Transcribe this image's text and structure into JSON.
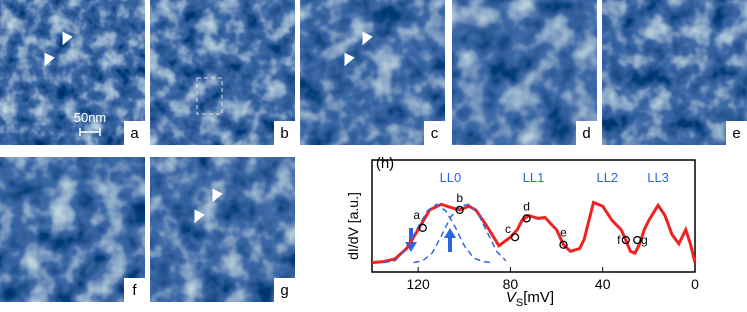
{
  "panels": [
    {
      "label": "a",
      "scale": "50nm"
    },
    {
      "label": "b"
    },
    {
      "label": "c"
    },
    {
      "label": "d"
    },
    {
      "label": "e"
    },
    {
      "label": "f"
    },
    {
      "label": "g"
    }
  ],
  "chart_data": {
    "type": "line",
    "panel_label": "(h)",
    "y_label": "dI/dV [a.u.]",
    "x_label": {
      "symbol": "V",
      "subscript": "S",
      "unit": "[mV]"
    },
    "xlim": [
      140,
      0
    ],
    "xticks": [
      120,
      80,
      40,
      0
    ],
    "ylim": [
      0,
      1
    ],
    "annotations": [
      {
        "text": "LL0",
        "x": 106
      },
      {
        "text": "LL1",
        "x": 70
      },
      {
        "text": "LL2",
        "x": 38
      },
      {
        "text": "LL3",
        "x": 16
      }
    ],
    "series": [
      {
        "style": "solid",
        "color": "#ee2222",
        "x": [
          140,
          135,
          130,
          125,
          120,
          115,
          110,
          105,
          102,
          98,
          95,
          90,
          85,
          80,
          77,
          75,
          72,
          68,
          65,
          62,
          60,
          57,
          54,
          50,
          48,
          44,
          40,
          36,
          32,
          30,
          28,
          26,
          24,
          22,
          20,
          18,
          16,
          13,
          10,
          7,
          4,
          2,
          0
        ],
        "values": [
          0.1,
          0.11,
          0.14,
          0.25,
          0.45,
          0.66,
          0.72,
          0.68,
          0.66,
          0.7,
          0.66,
          0.48,
          0.28,
          0.37,
          0.45,
          0.55,
          0.6,
          0.57,
          0.58,
          0.5,
          0.45,
          0.29,
          0.22,
          0.25,
          0.35,
          0.74,
          0.7,
          0.55,
          0.45,
          0.34,
          0.22,
          0.2,
          0.3,
          0.45,
          0.55,
          0.63,
          0.71,
          0.6,
          0.4,
          0.3,
          0.45,
          0.3,
          0.1
        ]
      },
      {
        "style": "dashed",
        "color": "#3366dd",
        "x": [
          135,
          130,
          125,
          120,
          116,
          112,
          108,
          104,
          100,
          96,
          92,
          88
        ],
        "values": [
          0.1,
          0.12,
          0.25,
          0.48,
          0.65,
          0.72,
          0.65,
          0.48,
          0.28,
          0.15,
          0.11,
          0.1
        ]
      },
      {
        "style": "dashed",
        "color": "#3366dd",
        "x": [
          122,
          118,
          114,
          110,
          106,
          102,
          98,
          94,
          90,
          86,
          82
        ],
        "values": [
          0.1,
          0.12,
          0.2,
          0.38,
          0.58,
          0.7,
          0.72,
          0.62,
          0.42,
          0.22,
          0.12
        ]
      }
    ],
    "points": [
      {
        "label": "a",
        "x": 118,
        "y": 0.47
      },
      {
        "label": "b",
        "x": 102,
        "y": 0.66
      },
      {
        "label": "c",
        "x": 78,
        "y": 0.37
      },
      {
        "label": "d",
        "x": 73,
        "y": 0.57
      },
      {
        "label": "e",
        "x": 57,
        "y": 0.29
      },
      {
        "label": "f",
        "x": 30,
        "y": 0.34
      },
      {
        "label": "g",
        "x": 25,
        "y": 0.34
      }
    ]
  }
}
